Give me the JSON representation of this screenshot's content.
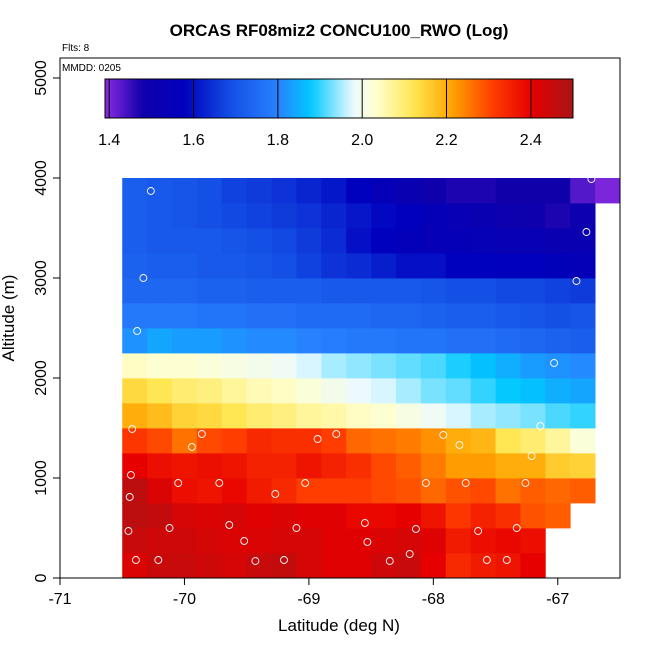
{
  "chart_data": {
    "type": "heatmap",
    "title": "ORCAS RF08miz2 CONCU100_RWO (Log)",
    "annotations": {
      "flights": "Flts: 8",
      "date": "MMDD: 0205"
    },
    "xlabel": "Latitude (deg N)",
    "ylabel": "Altitude (m)",
    "xlim": [
      -71,
      -66.5
    ],
    "ylim": [
      0,
      5200
    ],
    "xticks": [
      -71,
      -70,
      -69,
      -68,
      -67
    ],
    "yticks": [
      0,
      1000,
      2000,
      3000,
      4000,
      5000
    ],
    "colorbar": {
      "range": [
        1.39,
        2.5
      ],
      "ticks": [
        1.4,
        1.6,
        1.8,
        2.0,
        2.2,
        2.4
      ],
      "tick_labels": [
        "1.4",
        "1.6",
        "1.8",
        "2.0",
        "2.2",
        "2.4"
      ]
    },
    "grid": {
      "x_start": -70.5,
      "x_step": 0.2,
      "y_start": 0,
      "y_step": 250,
      "ncol": 20,
      "rows": [
        [
          2.42,
          2.45,
          2.45,
          2.44,
          2.43,
          2.45,
          2.46,
          2.43,
          2.41,
          2.41,
          2.44,
          2.45,
          2.4,
          2.34,
          2.36,
          2.37,
          2.4,
          null,
          null,
          null
        ],
        [
          2.45,
          2.44,
          2.44,
          2.43,
          2.42,
          2.42,
          2.43,
          2.43,
          2.41,
          2.41,
          2.42,
          2.43,
          2.41,
          2.36,
          2.38,
          2.39,
          2.38,
          null,
          null,
          null
        ],
        [
          2.47,
          2.46,
          2.43,
          2.42,
          2.43,
          2.41,
          2.42,
          2.41,
          2.41,
          2.39,
          2.39,
          2.4,
          2.37,
          2.32,
          2.35,
          2.33,
          2.29,
          2.28,
          null,
          null
        ],
        [
          2.47,
          2.42,
          2.38,
          2.37,
          2.39,
          2.36,
          2.34,
          2.31,
          2.31,
          2.31,
          2.3,
          2.29,
          2.27,
          2.29,
          2.3,
          2.26,
          2.28,
          2.27,
          2.28,
          null
        ],
        [
          2.4,
          2.38,
          2.37,
          2.38,
          2.37,
          2.35,
          2.35,
          2.37,
          2.35,
          2.33,
          2.3,
          2.28,
          2.25,
          2.22,
          2.22,
          2.2,
          2.2,
          2.16,
          2.15,
          null
        ],
        [
          2.32,
          2.3,
          2.26,
          2.3,
          2.31,
          2.34,
          2.33,
          2.33,
          2.31,
          2.27,
          2.26,
          2.25,
          2.23,
          2.2,
          2.19,
          2.12,
          2.1,
          2.07,
          2.02,
          null
        ],
        [
          2.2,
          2.18,
          2.15,
          2.14,
          2.12,
          2.1,
          2.09,
          2.07,
          2.06,
          2.04,
          2.03,
          2.01,
          1.99,
          1.97,
          1.95,
          1.94,
          1.93,
          1.91,
          1.9,
          null
        ],
        [
          2.14,
          2.12,
          2.1,
          2.09,
          2.07,
          2.05,
          2.04,
          2.02,
          2.0,
          1.98,
          1.97,
          1.95,
          1.93,
          1.92,
          1.9,
          1.88,
          1.87,
          1.85,
          1.84,
          null
        ],
        [
          2.04,
          2.03,
          2.03,
          2.02,
          2.01,
          2.0,
          1.99,
          1.97,
          1.95,
          1.94,
          1.93,
          1.92,
          1.91,
          1.89,
          1.87,
          1.85,
          1.83,
          1.82,
          1.81,
          null
        ],
        [
          1.82,
          1.84,
          1.83,
          1.83,
          1.82,
          1.81,
          1.81,
          1.8,
          1.79,
          1.78,
          1.78,
          1.77,
          1.77,
          1.76,
          1.76,
          1.75,
          1.74,
          1.73,
          1.72,
          null
        ],
        [
          1.78,
          1.78,
          1.78,
          1.77,
          1.77,
          1.76,
          1.76,
          1.75,
          1.75,
          1.75,
          1.74,
          1.74,
          1.73,
          1.72,
          1.72,
          1.71,
          1.7,
          1.69,
          1.7,
          null
        ],
        [
          1.74,
          1.74,
          1.74,
          1.73,
          1.73,
          1.72,
          1.72,
          1.72,
          1.71,
          1.71,
          1.71,
          1.71,
          1.7,
          1.69,
          1.69,
          1.68,
          1.68,
          1.67,
          1.66,
          null
        ],
        [
          1.73,
          1.72,
          1.72,
          1.71,
          1.71,
          1.7,
          1.69,
          1.67,
          1.65,
          1.64,
          1.62,
          1.6,
          1.6,
          1.58,
          1.58,
          1.57,
          1.57,
          1.56,
          1.55,
          null
        ],
        [
          1.72,
          1.71,
          1.71,
          1.71,
          1.7,
          1.69,
          1.68,
          1.66,
          1.64,
          1.6,
          1.58,
          1.56,
          1.55,
          1.55,
          1.54,
          1.53,
          1.53,
          1.52,
          1.52,
          null
        ],
        [
          1.72,
          1.71,
          1.7,
          1.69,
          1.68,
          1.67,
          1.66,
          1.65,
          1.63,
          1.61,
          1.59,
          1.57,
          1.55,
          1.53,
          1.52,
          1.5,
          1.49,
          1.47,
          1.5,
          null
        ],
        [
          1.72,
          1.71,
          1.7,
          1.69,
          1.67,
          1.66,
          1.65,
          1.63,
          1.61,
          1.58,
          1.55,
          1.52,
          1.49,
          1.47,
          1.47,
          1.48,
          1.48,
          1.48,
          1.43,
          1.4
        ]
      ]
    },
    "observations": [
      [
        -70.27,
        3870
      ],
      [
        -70.33,
        3000
      ],
      [
        -70.38,
        2470
      ],
      [
        -70.42,
        1490
      ],
      [
        -70.43,
        1030
      ],
      [
        -70.44,
        810
      ],
      [
        -70.45,
        470
      ],
      [
        -70.39,
        180
      ],
      [
        -70.21,
        180
      ],
      [
        -70.12,
        500
      ],
      [
        -70.05,
        950
      ],
      [
        -69.94,
        1310
      ],
      [
        -69.86,
        1440
      ],
      [
        -69.72,
        950
      ],
      [
        -69.64,
        530
      ],
      [
        -69.52,
        370
      ],
      [
        -69.43,
        170
      ],
      [
        -69.27,
        840
      ],
      [
        -69.2,
        180
      ],
      [
        -69.1,
        500
      ],
      [
        -69.03,
        950
      ],
      [
        -68.93,
        1390
      ],
      [
        -68.78,
        1440
      ],
      [
        -68.55,
        550
      ],
      [
        -68.53,
        360
      ],
      [
        -68.35,
        170
      ],
      [
        -68.19,
        240
      ],
      [
        -68.14,
        490
      ],
      [
        -68.06,
        950
      ],
      [
        -67.92,
        1430
      ],
      [
        -67.79,
        1330
      ],
      [
        -67.74,
        950
      ],
      [
        -67.64,
        470
      ],
      [
        -67.57,
        180
      ],
      [
        -67.41,
        180
      ],
      [
        -67.33,
        500
      ],
      [
        -67.26,
        950
      ],
      [
        -67.21,
        1220
      ],
      [
        -67.14,
        1520
      ],
      [
        -67.03,
        2150
      ],
      [
        -66.85,
        2970
      ],
      [
        -66.77,
        3460
      ],
      [
        -66.73,
        3990
      ]
    ]
  }
}
